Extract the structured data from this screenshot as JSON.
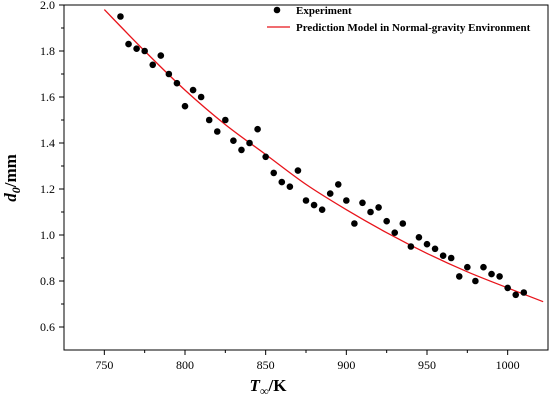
{
  "chart_data": {
    "type": "scatter",
    "title": "",
    "xlabel": "T∞/K",
    "ylabel": "d0/mm",
    "xlim": [
      725,
      1025
    ],
    "ylim": [
      0.5,
      2.0
    ],
    "xticks": [
      750,
      800,
      850,
      900,
      950,
      1000
    ],
    "yticks": [
      0.6,
      0.8,
      1.0,
      1.2,
      1.4,
      1.6,
      1.8,
      2.0
    ],
    "xtick_labels": [
      "750",
      "800",
      "850",
      "900",
      "950",
      "1000"
    ],
    "ytick_labels": [
      "0.6",
      "0.8",
      "1.0",
      "1.2",
      "1.4",
      "1.6",
      "1.8",
      "2.0"
    ],
    "grid": false,
    "legend_position": "top-right",
    "series": [
      {
        "name": "Experiment",
        "kind": "scatter",
        "color": "#000000",
        "x": [
          760,
          765,
          770,
          775,
          780,
          785,
          790,
          795,
          800,
          805,
          810,
          815,
          820,
          825,
          830,
          835,
          840,
          845,
          850,
          855,
          860,
          865,
          870,
          875,
          880,
          885,
          890,
          895,
          900,
          905,
          910,
          915,
          920,
          925,
          930,
          935,
          940,
          945,
          950,
          955,
          960,
          965,
          970,
          975,
          980,
          985,
          990,
          995,
          1000,
          1005,
          1010
        ],
        "y": [
          1.95,
          1.83,
          1.81,
          1.8,
          1.74,
          1.78,
          1.7,
          1.66,
          1.56,
          1.63,
          1.6,
          1.5,
          1.45,
          1.5,
          1.41,
          1.37,
          1.4,
          1.46,
          1.34,
          1.27,
          1.23,
          1.21,
          1.28,
          1.15,
          1.13,
          1.11,
          1.18,
          1.22,
          1.15,
          1.05,
          1.14,
          1.1,
          1.12,
          1.06,
          1.01,
          1.05,
          0.95,
          0.99,
          0.96,
          0.94,
          0.91,
          0.9,
          0.82,
          0.86,
          0.8,
          0.86,
          0.83,
          0.82,
          0.77,
          0.74,
          0.75
        ]
      },
      {
        "name": "Prediction Model in Normal-gravity Environment",
        "kind": "line",
        "color": "#e8141b",
        "x": [
          750,
          775,
          800,
          825,
          850,
          875,
          900,
          925,
          950,
          975,
          1000,
          1022
        ],
        "y": [
          1.98,
          1.8,
          1.63,
          1.48,
          1.35,
          1.22,
          1.11,
          1.01,
          0.92,
          0.84,
          0.77,
          0.71
        ]
      }
    ]
  }
}
